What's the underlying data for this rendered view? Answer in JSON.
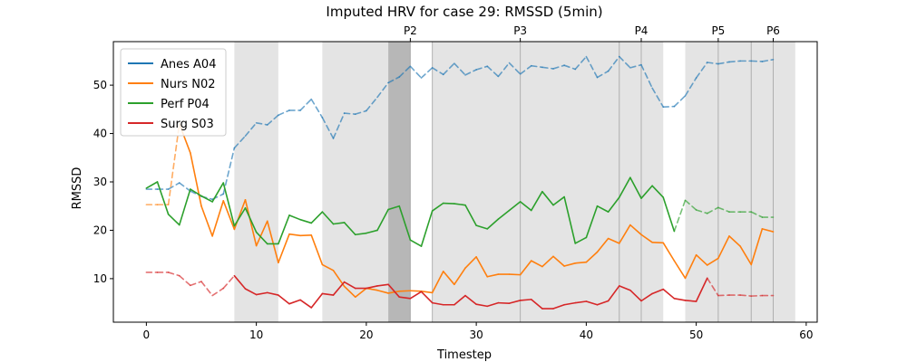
{
  "chart_data": {
    "type": "line",
    "title": "Imputed HRV for case 29: RMSSD (5min)",
    "xlabel": "Timestep",
    "ylabel": "RMSSD",
    "xlim": [
      -3,
      61
    ],
    "ylim": [
      1,
      59
    ],
    "xticks": [
      0,
      10,
      20,
      30,
      40,
      50,
      60
    ],
    "yticks": [
      10,
      20,
      30,
      40,
      50
    ],
    "grid": false,
    "legend_position": "upper-left",
    "shaded_spans": [
      {
        "start": 8,
        "end": 12,
        "level": "light"
      },
      {
        "start": 16,
        "end": 24,
        "level": "light"
      },
      {
        "start": 22,
        "end": 24,
        "level": "dark"
      },
      {
        "start": 26,
        "end": 47,
        "level": "light"
      },
      {
        "start": 49,
        "end": 59,
        "level": "light"
      }
    ],
    "phase_markers": [
      {
        "label": "P2",
        "x": 24
      },
      {
        "label": "P3",
        "x": 34
      },
      {
        "label": "P4",
        "x": 45
      },
      {
        "label": "P5",
        "x": 52
      },
      {
        "label": "P6",
        "x": 57
      }
    ],
    "vlines": [
      26,
      43,
      55
    ],
    "series": [
      {
        "name": "Anes A04",
        "color": "#1f77b4",
        "x": [
          0,
          1,
          2,
          3,
          4,
          5,
          6,
          7,
          8,
          9,
          10,
          11,
          12,
          13,
          14,
          15,
          16,
          17,
          18,
          19,
          20,
          21,
          22,
          23,
          24,
          25,
          26,
          27,
          28,
          29,
          30,
          31,
          32,
          33,
          34,
          35,
          36,
          37,
          38,
          39,
          40,
          41,
          42,
          43,
          44,
          45,
          46,
          47,
          48,
          49,
          50,
          51,
          52,
          53,
          54,
          55,
          56,
          57
        ],
        "y": [
          28.5,
          28.5,
          28.5,
          29.8,
          28.1,
          27,
          26.4,
          27.5,
          37,
          39.5,
          42.2,
          41.8,
          43.8,
          44.8,
          44.8,
          47.1,
          43.3,
          39,
          44.2,
          44,
          44.7,
          47.5,
          50.5,
          51.7,
          53.9,
          51.5,
          53.6,
          52.2,
          54.5,
          52.1,
          53.2,
          53.9,
          51.8,
          54.6,
          52.3,
          54,
          53.7,
          53.4,
          54.1,
          53.3,
          55.9,
          51.6,
          52.9,
          55.9,
          53.6,
          54.2,
          49.4,
          45.5,
          45.6,
          47.8,
          51.5,
          54.7,
          54.4,
          54.8,
          55,
          55,
          54.9,
          55.3
        ],
        "observed": []
      },
      {
        "name": "Nurs N02",
        "color": "#ff7f0e",
        "x": [
          0,
          1,
          2,
          3,
          4,
          5,
          6,
          7,
          8,
          9,
          10,
          11,
          12,
          13,
          14,
          15,
          16,
          17,
          18,
          19,
          20,
          21,
          22,
          23,
          24,
          25,
          26,
          27,
          28,
          29,
          30,
          31,
          32,
          33,
          34,
          35,
          36,
          37,
          38,
          39,
          40,
          41,
          42,
          43,
          44,
          45,
          46,
          47,
          48,
          49,
          50,
          51,
          52,
          53,
          54,
          55,
          56,
          57
        ],
        "y": [
          25.3,
          25.3,
          25.3,
          42,
          36,
          25,
          18.8,
          26.1,
          20.2,
          26.3,
          16.8,
          21.9,
          13.3,
          19.2,
          18.9,
          19,
          12.9,
          11.7,
          8.4,
          6.2,
          8,
          7.6,
          7,
          7.4,
          7.5,
          7.4,
          7.1,
          11.5,
          8.8,
          12.2,
          14.5,
          10.4,
          10.9,
          10.9,
          10.8,
          13.7,
          12.5,
          14.6,
          12.6,
          13.2,
          13.4,
          15.5,
          18.3,
          17.3,
          21.1,
          19.1,
          17.5,
          17.4,
          13.7,
          10.1,
          14.9,
          12.8,
          14.2,
          18.8,
          16.7,
          12.9,
          20.3,
          19.7
        ],
        "observed": [
          3,
          4,
          5,
          6,
          7,
          8,
          9,
          10,
          11,
          12,
          13,
          14,
          15,
          16,
          17,
          18,
          19,
          20,
          21,
          22,
          23,
          24,
          25,
          26,
          27,
          28,
          29,
          30,
          31,
          32,
          33,
          34,
          35,
          36,
          37,
          38,
          39,
          40,
          41,
          42,
          43,
          44,
          45,
          46,
          47,
          48,
          49,
          50,
          51,
          52,
          53,
          54,
          55,
          56,
          57
        ]
      },
      {
        "name": "Perf P04",
        "color": "#2ca02c",
        "x": [
          0,
          1,
          2,
          3,
          4,
          5,
          6,
          7,
          8,
          9,
          10,
          11,
          12,
          13,
          14,
          15,
          16,
          17,
          18,
          19,
          20,
          21,
          22,
          23,
          24,
          25,
          26,
          27,
          28,
          29,
          30,
          31,
          32,
          33,
          34,
          35,
          36,
          37,
          38,
          39,
          40,
          41,
          42,
          43,
          44,
          45,
          46,
          47,
          48,
          49,
          50,
          51,
          52,
          53,
          54,
          55,
          56,
          57
        ],
        "y": [
          28.7,
          30,
          23.3,
          21.1,
          28.5,
          27.1,
          25.9,
          29.8,
          20.9,
          24.6,
          19.6,
          17.2,
          17.2,
          23.1,
          22.2,
          21.5,
          23.8,
          21.3,
          21.6,
          19.1,
          19.4,
          20,
          24.3,
          25,
          18,
          16.7,
          24,
          25.6,
          25.5,
          25.2,
          21,
          20.3,
          22.3,
          24.1,
          25.9,
          24.1,
          28,
          25.2,
          26.9,
          17.3,
          18.5,
          25,
          23.8,
          26.8,
          30.9,
          26.6,
          29.2,
          26.8,
          19.8,
          26.2,
          24.2,
          23.5,
          24.7,
          23.8,
          23.8,
          23.8,
          22.7,
          22.7
        ],
        "observed": [
          0,
          1,
          2,
          3,
          4,
          5,
          6,
          7,
          8,
          9,
          10,
          11,
          12,
          13,
          14,
          15,
          16,
          17,
          18,
          19,
          20,
          21,
          22,
          23,
          24,
          25,
          26,
          27,
          28,
          29,
          30,
          31,
          32,
          33,
          34,
          35,
          36,
          37,
          38,
          39,
          40,
          41,
          42,
          43,
          44,
          45,
          46,
          47,
          48
        ]
      },
      {
        "name": "Surg S03",
        "color": "#d62728",
        "x": [
          0,
          1,
          2,
          3,
          4,
          5,
          6,
          7,
          8,
          9,
          10,
          11,
          12,
          13,
          14,
          15,
          16,
          17,
          18,
          19,
          20,
          21,
          22,
          23,
          24,
          25,
          26,
          27,
          28,
          29,
          30,
          31,
          32,
          33,
          34,
          35,
          36,
          37,
          38,
          39,
          40,
          41,
          42,
          43,
          44,
          45,
          46,
          47,
          48,
          49,
          50,
          51,
          52,
          53,
          54,
          55,
          56,
          57
        ],
        "y": [
          11.3,
          11.3,
          11.3,
          10.6,
          8.6,
          9.4,
          6.5,
          8,
          10.6,
          7.9,
          6.7,
          7.1,
          6.6,
          4.8,
          5.6,
          4,
          6.9,
          6.6,
          9.3,
          8,
          8,
          8.5,
          8.8,
          6.2,
          5.9,
          7.3,
          5,
          4.6,
          4.6,
          6.5,
          4.7,
          4.3,
          5,
          4.9,
          5.5,
          5.7,
          3.8,
          3.8,
          4.6,
          5,
          5.3,
          4.6,
          5.4,
          8.5,
          7.6,
          5.4,
          6.9,
          7.8,
          5.9,
          5.5,
          5.3,
          10.1,
          6.5,
          6.6,
          6.6,
          6.4,
          6.5,
          6.5
        ],
        "observed": [
          8,
          9,
          10,
          11,
          12,
          13,
          14,
          15,
          16,
          17,
          18,
          19,
          20,
          21,
          22,
          23,
          24,
          25,
          26,
          27,
          28,
          29,
          30,
          31,
          32,
          33,
          34,
          35,
          36,
          37,
          38,
          39,
          40,
          41,
          42,
          43,
          44,
          45,
          46,
          47,
          48,
          49,
          50,
          51
        ]
      }
    ]
  }
}
